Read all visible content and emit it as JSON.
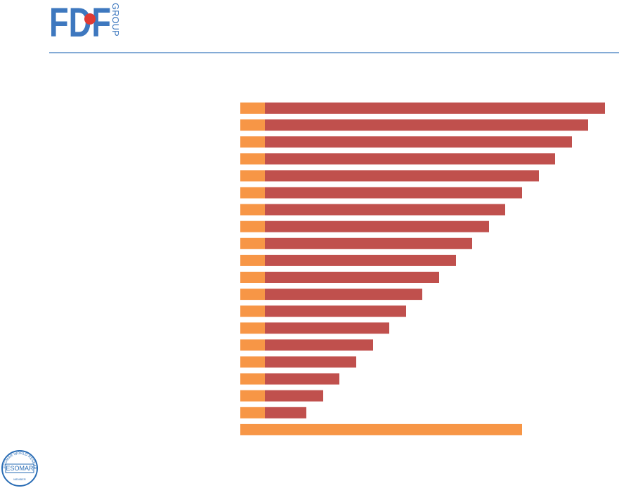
{
  "logo": {
    "mark": "FDF",
    "sub": "GROUP"
  },
  "badge": {
    "ring": "ESOMAR WORLD RESEARCH",
    "name": "ESOMAR",
    "member": "MEMBER"
  },
  "chart_data": {
    "type": "bar",
    "orientation": "horizontal",
    "stacked": true,
    "categories": [
      null,
      null,
      null,
      null,
      null,
      null,
      null,
      null,
      null,
      null,
      null,
      null,
      null,
      null,
      null,
      null,
      null,
      null,
      null,
      null
    ],
    "xlim": [
      0,
      524
    ],
    "series": [
      {
        "color": "#f79646",
        "values": [
          35,
          35,
          35,
          35,
          35,
          35,
          35,
          35,
          35,
          35,
          35,
          35,
          35,
          35,
          35,
          35,
          35,
          35,
          35,
          401
        ]
      },
      {
        "color": "#c0504d",
        "values": [
          484,
          460,
          437,
          413,
          390,
          366,
          342,
          319,
          295,
          272,
          248,
          224,
          201,
          177,
          154,
          130,
          106,
          83,
          59,
          null
        ]
      }
    ]
  }
}
